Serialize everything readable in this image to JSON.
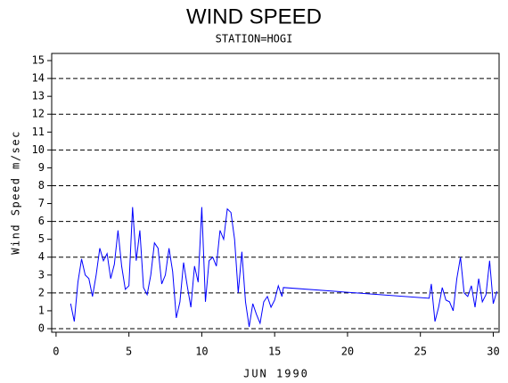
{
  "chart_data": {
    "type": "line",
    "title": "WIND SPEED",
    "subtitle": "STATION=HOGI",
    "x_label": "JUN 1990",
    "y_label": "Wind Speed m/sec",
    "color": "#0000ff",
    "x": [
      1.0,
      1.25,
      1.5,
      1.75,
      2.0,
      2.25,
      2.5,
      2.75,
      3.0,
      3.25,
      3.5,
      3.75,
      4.0,
      4.25,
      4.5,
      4.75,
      5.0,
      5.25,
      5.5,
      5.75,
      6.0,
      6.25,
      6.5,
      6.75,
      7.0,
      7.25,
      7.5,
      7.75,
      8.0,
      8.25,
      8.5,
      8.75,
      9.0,
      9.25,
      9.5,
      9.75,
      10.0,
      10.25,
      10.5,
      10.75,
      11.0,
      11.25,
      11.5,
      11.75,
      12.0,
      12.25,
      12.5,
      12.75,
      13.0,
      13.25,
      13.5,
      13.75,
      14.0,
      14.25,
      14.5,
      14.75,
      15.0,
      15.25,
      15.5,
      15.6,
      25.6,
      25.75,
      26.0,
      26.25,
      26.5,
      26.75,
      27.0,
      27.25,
      27.5,
      27.75,
      28.0,
      28.25,
      28.5,
      28.75,
      29.0,
      29.25,
      29.5,
      29.75,
      30.0,
      30.25
    ],
    "values": [
      1.4,
      0.4,
      2.6,
      3.9,
      3.0,
      2.8,
      1.8,
      3.0,
      4.5,
      3.8,
      4.2,
      2.8,
      3.6,
      5.5,
      3.5,
      2.2,
      2.4,
      6.8,
      3.8,
      5.5,
      2.3,
      1.9,
      3.0,
      4.8,
      4.5,
      2.5,
      3.0,
      4.5,
      3.2,
      0.6,
      1.5,
      3.7,
      2.4,
      1.2,
      3.5,
      2.6,
      6.8,
      1.5,
      3.8,
      4.0,
      3.5,
      5.5,
      5.0,
      6.7,
      6.5,
      5.0,
      2.0,
      4.3,
      1.5,
      0.1,
      1.4,
      0.8,
      0.3,
      1.5,
      1.8,
      1.2,
      1.6,
      2.4,
      1.8,
      2.3,
      1.7,
      2.5,
      0.4,
      1.2,
      2.3,
      1.6,
      1.5,
      1.0,
      2.8,
      4.0,
      2.0,
      1.8,
      2.4,
      1.2,
      2.8,
      1.5,
      1.9,
      3.8,
      1.4,
      2.1
    ],
    "xlim": [
      -0.3,
      30.4
    ],
    "xticks": [
      0,
      5,
      10,
      15,
      20,
      25,
      30
    ],
    "ylim": [
      -0.2,
      15.4
    ],
    "yticks": [
      0,
      1,
      2,
      3,
      4,
      5,
      6,
      7,
      8,
      9,
      10,
      11,
      12,
      13,
      14,
      15
    ],
    "grid_lines": [
      0,
      2,
      4,
      6,
      8,
      10,
      12,
      14
    ]
  }
}
